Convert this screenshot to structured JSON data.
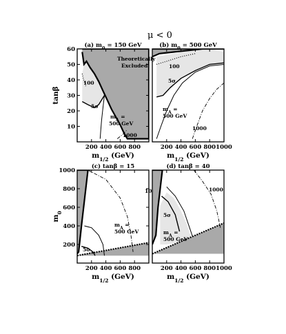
{
  "figure_title": "μ < 0",
  "chart_data": [
    {
      "type": "area",
      "panel": "a",
      "title": "(a) m0 = 150 GeV",
      "title_parts": {
        "prefix": "(a) m",
        "sub": "0",
        "suffix": " = 150 GeV"
      },
      "xlabel": "m1/2 (GeV)",
      "ylabel": "tanβ",
      "xlim": [
        0,
        1000
      ],
      "ylim": [
        0,
        60
      ],
      "xticks": [
        "200",
        "400",
        "600",
        "800"
      ],
      "yticks": [
        "10",
        "20",
        "30",
        "40",
        "50",
        "60"
      ],
      "annotations": [
        "Theoretically",
        "Excluded",
        "100",
        "5σ",
        "mA =",
        "500 GeV",
        "1000"
      ],
      "excluded_region": [
        [
          70,
          58
        ],
        [
          95,
          50
        ],
        [
          130,
          52
        ],
        [
          180,
          48
        ],
        [
          240,
          44
        ],
        [
          300,
          39
        ],
        [
          360,
          33
        ],
        [
          420,
          27
        ],
        [
          480,
          21
        ],
        [
          540,
          16
        ],
        [
          600,
          11
        ],
        [
          650,
          6
        ],
        [
          700,
          2
        ],
        [
          1000,
          2
        ],
        [
          1000,
          60
        ],
        [
          70,
          60
        ]
      ],
      "shaded_region_5sigma": [
        [
          70,
          44
        ],
        [
          95,
          50
        ],
        [
          130,
          52
        ],
        [
          180,
          48
        ],
        [
          240,
          44
        ],
        [
          300,
          39
        ],
        [
          360,
          33
        ],
        [
          380,
          30
        ],
        [
          300,
          24
        ],
        [
          240,
          22
        ],
        [
          150,
          24
        ],
        [
          70,
          26
        ]
      ],
      "curve_100": [
        [
          70,
          44
        ],
        [
          90,
          40
        ],
        [
          120,
          36
        ]
      ],
      "curve_5sigma": [
        [
          70,
          26
        ],
        [
          150,
          24
        ],
        [
          240,
          22
        ],
        [
          300,
          24
        ],
        [
          380,
          30
        ]
      ],
      "curve_mA500": [
        [
          380,
          30
        ],
        [
          360,
          22
        ],
        [
          340,
          14
        ],
        [
          330,
          8
        ],
        [
          320,
          2
        ]
      ],
      "curve_1000": [
        [
          560,
          2
        ],
        [
          640,
          5
        ],
        [
          700,
          8
        ]
      ]
    },
    {
      "type": "area",
      "panel": "b",
      "title": "(b) m0 = 500 GeV",
      "title_parts": {
        "prefix": "(b) m",
        "sub": "0",
        "suffix": " = 500 GeV"
      },
      "xlabel": "m1/2 (GeV)",
      "ylabel": "",
      "xlim": [
        0,
        1000
      ],
      "ylim": [
        0,
        60
      ],
      "xticks": [
        "200",
        "400",
        "600",
        "800",
        "1000"
      ],
      "yticks": [],
      "annotations": [
        "100",
        "5σ",
        "mA =",
        "500 GeV",
        "1000"
      ],
      "excluded_region": [
        [
          0,
          55
        ],
        [
          100,
          57
        ],
        [
          300,
          58
        ],
        [
          500,
          59
        ],
        [
          700,
          60
        ],
        [
          900,
          60
        ],
        [
          1000,
          60
        ],
        [
          1000,
          60
        ],
        [
          0,
          60
        ]
      ],
      "shaded_region_5sigma": [
        [
          60,
          55
        ],
        [
          200,
          56
        ],
        [
          400,
          58
        ],
        [
          600,
          59
        ],
        [
          800,
          60
        ],
        [
          1000,
          58
        ],
        [
          1000,
          51
        ],
        [
          800,
          50
        ],
        [
          600,
          46
        ],
        [
          400,
          41
        ],
        [
          250,
          35
        ],
        [
          150,
          30
        ],
        [
          60,
          29
        ]
      ],
      "curve_100": [
        [
          60,
          50
        ],
        [
          200,
          52
        ],
        [
          400,
          55
        ],
        [
          600,
          57
        ]
      ],
      "curve_5sigma": [
        [
          60,
          29
        ],
        [
          150,
          30
        ],
        [
          250,
          35
        ],
        [
          400,
          41
        ],
        [
          600,
          46
        ],
        [
          800,
          50
        ],
        [
          1000,
          51
        ]
      ],
      "curve_mA500": [
        [
          60,
          2
        ],
        [
          120,
          10
        ],
        [
          200,
          20
        ],
        [
          300,
          30
        ],
        [
          420,
          38
        ],
        [
          600,
          45
        ],
        [
          800,
          49
        ],
        [
          1000,
          50
        ]
      ],
      "curve_1000": [
        [
          560,
          2
        ],
        [
          620,
          10
        ],
        [
          700,
          20
        ],
        [
          800,
          28
        ],
        [
          900,
          34
        ],
        [
          1000,
          38
        ]
      ]
    },
    {
      "type": "area",
      "panel": "c",
      "title": "(c) tanβ = 15",
      "title_parts": {
        "prefix": "(c) tanβ = 15",
        "sub": "",
        "suffix": ""
      },
      "xlabel": "m1/2 (GeV)",
      "ylabel": "m0",
      "xlim": [
        0,
        1000
      ],
      "ylim": [
        0,
        1000
      ],
      "xticks": [
        "200",
        "400",
        "600",
        "800"
      ],
      "yticks": [
        "200",
        "400",
        "600",
        "800",
        "1000"
      ],
      "annotations": [
        "1000",
        "mA =",
        "500 GeV",
        "5σ"
      ],
      "excluded_region_left": [
        [
          0,
          1000
        ],
        [
          150,
          1000
        ],
        [
          60,
          400
        ],
        [
          20,
          120
        ],
        [
          0,
          100
        ]
      ],
      "excluded_region_bottom": [
        [
          0,
          80
        ],
        [
          1000,
          80
        ],
        [
          1000,
          220
        ],
        [
          0,
          80
        ]
      ],
      "shaded_region_5sigma": [
        [
          60,
          100
        ],
        [
          150,
          110
        ],
        [
          200,
          140
        ],
        [
          240,
          80
        ],
        [
          60,
          80
        ]
      ],
      "curve_mA500": [
        [
          100,
          400
        ],
        [
          200,
          380
        ],
        [
          300,
          300
        ],
        [
          360,
          200
        ],
        [
          380,
          80
        ]
      ],
      "curve_1000": [
        [
          150,
          1000
        ],
        [
          400,
          900
        ],
        [
          600,
          700
        ],
        [
          700,
          500
        ],
        [
          750,
          300
        ],
        [
          780,
          120
        ]
      ],
      "curve_5sigma": [
        [
          60,
          180
        ],
        [
          150,
          160
        ],
        [
          220,
          120
        ],
        [
          250,
          80
        ]
      ]
    },
    {
      "type": "area",
      "panel": "d",
      "title": "(d) tanβ = 40",
      "title_parts": {
        "prefix": "(d) tanβ = 40",
        "sub": "",
        "suffix": ""
      },
      "xlabel": "m1/2 (GeV)",
      "ylabel": "",
      "xlim": [
        0,
        1000
      ],
      "ylim": [
        0,
        1000
      ],
      "xticks": [
        "200",
        "400",
        "600",
        "800",
        "1000"
      ],
      "yticks": [],
      "annotations": [
        "1000",
        "5σ",
        "mA =",
        "500 GeV"
      ],
      "excluded_region_left": [
        [
          0,
          1000
        ],
        [
          140,
          1000
        ],
        [
          80,
          600
        ],
        [
          50,
          300
        ],
        [
          0,
          200
        ]
      ],
      "excluded_region_bottom": [
        [
          0,
          100
        ],
        [
          1000,
          100
        ],
        [
          1000,
          430
        ],
        [
          0,
          100
        ]
      ],
      "shaded_region_5sigma": [
        [
          110,
          620
        ],
        [
          200,
          760
        ],
        [
          300,
          700
        ],
        [
          400,
          560
        ],
        [
          480,
          420
        ],
        [
          540,
          280
        ],
        [
          360,
          220
        ],
        [
          200,
          200
        ],
        [
          110,
          200
        ]
      ],
      "curve_5sigma": [
        [
          130,
          720
        ],
        [
          220,
          660
        ],
        [
          320,
          520
        ],
        [
          380,
          340
        ]
      ],
      "curve_mA500": [
        [
          200,
          820
        ],
        [
          320,
          720
        ],
        [
          440,
          560
        ],
        [
          520,
          380
        ],
        [
          560,
          290
        ]
      ],
      "curve_1000": [
        [
          580,
          1000
        ],
        [
          700,
          880
        ],
        [
          820,
          740
        ],
        [
          900,
          560
        ],
        [
          950,
          380
        ]
      ]
    }
  ]
}
